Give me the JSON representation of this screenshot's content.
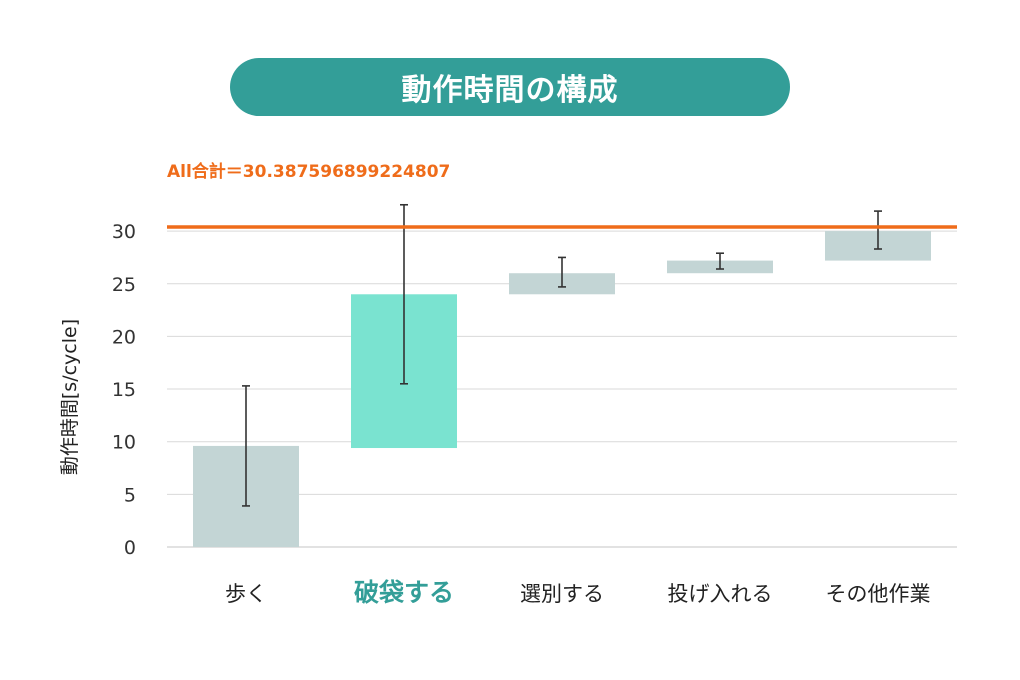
{
  "title": "動作時間の構成",
  "colors": {
    "title_bg": "#339e98",
    "bar_default": "#c3d5d5",
    "bar_highlight": "#7ae3d0",
    "highlight_label": "#339e98",
    "total_line": "#ef6c1a",
    "total_label": "#ef6c1a",
    "gridline": "#d9d9d9",
    "error_bar": "#333333"
  },
  "chart_data": {
    "type": "bar",
    "subtype": "waterfall",
    "ylabel": "動作時間[s/cycle]",
    "ylim": [
      0,
      32
    ],
    "yticks": [
      0,
      5,
      10,
      15,
      20,
      25,
      30
    ],
    "grid": true,
    "categories": [
      "歩く",
      "破袋する",
      "選別する",
      "投げ入れる",
      "その他作業"
    ],
    "highlight_index": 1,
    "bars": [
      {
        "start": 0,
        "end": 9.6,
        "err_low": 3.9,
        "err_high": 15.3
      },
      {
        "start": 9.4,
        "end": 24.0,
        "err_low": 15.5,
        "err_high": 32.5
      },
      {
        "start": 24.0,
        "end": 26.0,
        "err_low": 24.7,
        "err_high": 27.5
      },
      {
        "start": 26.0,
        "end": 27.2,
        "err_low": 26.4,
        "err_high": 27.9
      },
      {
        "start": 27.2,
        "end": 30.0,
        "err_low": 28.3,
        "err_high": 31.9
      }
    ],
    "total": {
      "label": "All合計＝30.387596899224807",
      "value": 30.387596899224807
    }
  }
}
